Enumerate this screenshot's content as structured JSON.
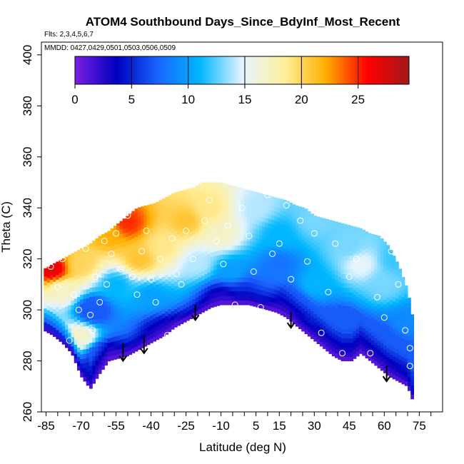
{
  "chart_data": {
    "type": "heatmap",
    "title": "ATOM4 Southbound Days_Since_BdyInf_Most_Recent",
    "flights_label": "Flts: 2,3,4,5,6,7",
    "dates_label": "MMDD: 0427,0429,0501,0503,0506,0509",
    "xlabel": "Latitude (deg N)",
    "ylabel": "Theta (C)",
    "xlim": [
      -87,
      85
    ],
    "ylim": [
      260,
      405
    ],
    "x_ticks": [
      -85,
      -70,
      -55,
      -40,
      -25,
      -10,
      5,
      15,
      30,
      45,
      60,
      75
    ],
    "y_ticks": [
      260,
      280,
      300,
      320,
      340,
      360,
      380,
      400
    ],
    "colorbar": {
      "min": 0,
      "max": 29.5,
      "ticks": [
        0,
        5,
        10,
        15,
        20,
        25
      ],
      "colors": [
        "#7b1fe0",
        "#0000c0",
        "#1a66ff",
        "#00b7ff",
        "#e4f4ff",
        "#fff0a0",
        "#ffb000",
        "#ff0000",
        "#a01818"
      ]
    },
    "domain_profile": {
      "lat": [
        -86,
        -82,
        -78,
        -74,
        -70,
        -66,
        -62,
        -58,
        -54,
        -50,
        -46,
        -42,
        -38,
        -34,
        -30,
        -26,
        -22,
        -18,
        -14,
        -10,
        -6,
        -2,
        2,
        6,
        10,
        14,
        18,
        22,
        26,
        30,
        34,
        38,
        42,
        46,
        50,
        54,
        58,
        62,
        66,
        70,
        72
      ],
      "theta_bottom": [
        292,
        290,
        287,
        283,
        274,
        269,
        275,
        280,
        281,
        282,
        284,
        286,
        288,
        290,
        293,
        295,
        297,
        299,
        301,
        302,
        302,
        302,
        302,
        301,
        300,
        299,
        297,
        294,
        291,
        288,
        285,
        282,
        280,
        280,
        283,
        280,
        277,
        274,
        272,
        270,
        265
      ],
      "theta_top": [
        316,
        318,
        320,
        322,
        324,
        326,
        329,
        331,
        334,
        337,
        340,
        341,
        342,
        344,
        346,
        347,
        348,
        350,
        350,
        350,
        349,
        348,
        347,
        346,
        345,
        344,
        343,
        341,
        340,
        337,
        336,
        335,
        334,
        333,
        332,
        330,
        329,
        325,
        318,
        308,
        298
      ]
    },
    "field_anchors": [
      {
        "lat": -82,
        "theta": 316,
        "days": 27
      },
      {
        "lat": -84,
        "theta": 295,
        "days": 13
      },
      {
        "lat": -78,
        "theta": 308,
        "days": 17
      },
      {
        "lat": -70,
        "theta": 318,
        "days": 20
      },
      {
        "lat": -70,
        "theta": 290,
        "days": 17
      },
      {
        "lat": -65,
        "theta": 300,
        "days": 5
      },
      {
        "lat": -58,
        "theta": 330,
        "days": 22
      },
      {
        "lat": -50,
        "theta": 334,
        "days": 25
      },
      {
        "lat": -45,
        "theta": 320,
        "days": 21
      },
      {
        "lat": -55,
        "theta": 310,
        "days": 11
      },
      {
        "lat": -40,
        "theta": 305,
        "days": 10
      },
      {
        "lat": -35,
        "theta": 325,
        "days": 19
      },
      {
        "lat": -35,
        "theta": 292,
        "days": 3
      },
      {
        "lat": -25,
        "theta": 335,
        "days": 21
      },
      {
        "lat": -20,
        "theta": 318,
        "days": 14
      },
      {
        "lat": -15,
        "theta": 340,
        "days": 19
      },
      {
        "lat": -10,
        "theta": 330,
        "days": 17
      },
      {
        "lat": -5,
        "theta": 315,
        "days": 10
      },
      {
        "lat": 5,
        "theta": 340,
        "days": 14
      },
      {
        "lat": 0,
        "theta": 308,
        "days": 6
      },
      {
        "lat": 15,
        "theta": 330,
        "days": 11
      },
      {
        "lat": 15,
        "theta": 318,
        "days": 8
      },
      {
        "lat": 30,
        "theta": 335,
        "days": 13
      },
      {
        "lat": 30,
        "theta": 310,
        "days": 11
      },
      {
        "lat": 45,
        "theta": 325,
        "days": 13
      },
      {
        "lat": 50,
        "theta": 318,
        "days": 15
      },
      {
        "lat": 60,
        "theta": 310,
        "days": 13
      },
      {
        "lat": 65,
        "theta": 320,
        "days": 12
      },
      {
        "lat": 70,
        "theta": 295,
        "days": 9
      },
      {
        "lat": 60,
        "theta": 285,
        "days": 3
      },
      {
        "lat": 40,
        "theta": 292,
        "days": 3
      },
      {
        "lat": 20,
        "theta": 302,
        "days": 3
      },
      {
        "lat": -10,
        "theta": 305,
        "days": 3
      },
      {
        "lat": -60,
        "theta": 282,
        "days": 2
      }
    ],
    "arrows": [
      {
        "lat": -52,
        "theta_top": 287,
        "theta_bottom": 280
      },
      {
        "lat": -43,
        "theta_top": 290,
        "theta_bottom": 283
      },
      {
        "lat": -21,
        "theta_top": 302,
        "theta_bottom": 296
      },
      {
        "lat": 20,
        "theta_top": 299,
        "theta_bottom": 293
      },
      {
        "lat": 61,
        "theta_top": 278,
        "theta_bottom": 272
      }
    ],
    "points": [
      {
        "lat": -83,
        "theta": 317
      },
      {
        "lat": -80,
        "theta": 309
      },
      {
        "lat": -78,
        "theta": 320
      },
      {
        "lat": -75,
        "theta": 288
      },
      {
        "lat": -73,
        "theta": 306
      },
      {
        "lat": -71,
        "theta": 300
      },
      {
        "lat": -68,
        "theta": 324
      },
      {
        "lat": -66,
        "theta": 298
      },
      {
        "lat": -65,
        "theta": 292
      },
      {
        "lat": -64,
        "theta": 313
      },
      {
        "lat": -62,
        "theta": 303
      },
      {
        "lat": -60,
        "theta": 327
      },
      {
        "lat": -59,
        "theta": 310
      },
      {
        "lat": -57,
        "theta": 322
      },
      {
        "lat": -55,
        "theta": 330
      },
      {
        "lat": -53,
        "theta": 316
      },
      {
        "lat": -50,
        "theta": 337
      },
      {
        "lat": -48,
        "theta": 313
      },
      {
        "lat": -46,
        "theta": 306
      },
      {
        "lat": -44,
        "theta": 323
      },
      {
        "lat": -42,
        "theta": 331
      },
      {
        "lat": -40,
        "theta": 312
      },
      {
        "lat": -38,
        "theta": 303
      },
      {
        "lat": -36,
        "theta": 320
      },
      {
        "lat": -33,
        "theta": 290
      },
      {
        "lat": -31,
        "theta": 328
      },
      {
        "lat": -29,
        "theta": 314
      },
      {
        "lat": -27,
        "theta": 310
      },
      {
        "lat": -25,
        "theta": 331
      },
      {
        "lat": -22,
        "theta": 320
      },
      {
        "lat": -19,
        "theta": 296
      },
      {
        "lat": -17,
        "theta": 335
      },
      {
        "lat": -15,
        "theta": 343
      },
      {
        "lat": -12,
        "theta": 327
      },
      {
        "lat": -9,
        "theta": 318
      },
      {
        "lat": -7,
        "theta": 333
      },
      {
        "lat": -4,
        "theta": 302
      },
      {
        "lat": -1,
        "theta": 340
      },
      {
        "lat": 2,
        "theta": 329
      },
      {
        "lat": 4,
        "theta": 315
      },
      {
        "lat": 7,
        "theta": 301
      },
      {
        "lat": 10,
        "theta": 345
      },
      {
        "lat": 12,
        "theta": 322
      },
      {
        "lat": 15,
        "theta": 326
      },
      {
        "lat": 18,
        "theta": 341
      },
      {
        "lat": 20,
        "theta": 312
      },
      {
        "lat": 24,
        "theta": 335
      },
      {
        "lat": 27,
        "theta": 319
      },
      {
        "lat": 30,
        "theta": 330
      },
      {
        "lat": 33,
        "theta": 291
      },
      {
        "lat": 36,
        "theta": 307
      },
      {
        "lat": 39,
        "theta": 326
      },
      {
        "lat": 42,
        "theta": 283
      },
      {
        "lat": 45,
        "theta": 313
      },
      {
        "lat": 48,
        "theta": 320
      },
      {
        "lat": 51,
        "theta": 334
      },
      {
        "lat": 54,
        "theta": 283
      },
      {
        "lat": 57,
        "theta": 305
      },
      {
        "lat": 60,
        "theta": 297
      },
      {
        "lat": 63,
        "theta": 323
      },
      {
        "lat": 66,
        "theta": 310
      },
      {
        "lat": 69,
        "theta": 292
      },
      {
        "lat": 71,
        "theta": 285
      },
      {
        "lat": 71,
        "theta": 278
      }
    ]
  }
}
